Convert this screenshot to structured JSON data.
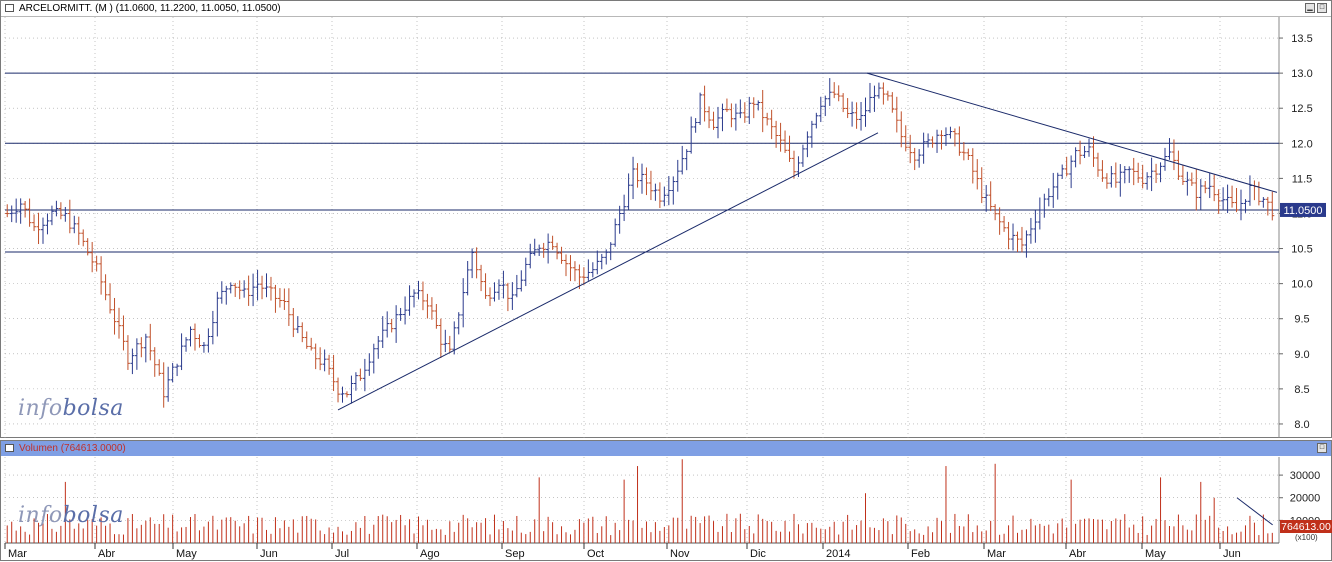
{
  "price_panel": {
    "title": "ARCELORMITT. (M ) (11.0600, 11.2200, 11.0050, 11.0500)",
    "last_value_label": "11.0500"
  },
  "volume_panel": {
    "title": "Volumen (764613.0000)",
    "last_value_label": "764613.00",
    "scale_note": "(x100)"
  },
  "logo": {
    "part1": "info",
    "part2": "bolsa"
  },
  "colors": {
    "up_bar": "#2a3a8c",
    "down_bar": "#c0502a",
    "hline": "#1a2a6a",
    "trend": "#1a2a6a",
    "vol_bar": "#c0301a",
    "grid": "#a0a0a0"
  },
  "chart_data": [
    {
      "type": "ohlc",
      "title": "ARCELORMITT. (M )",
      "ylim": [
        7.8,
        13.8
      ],
      "yticks": [
        "8.0",
        "8.5",
        "9.0",
        "9.5",
        "10.0",
        "10.5",
        "11.0",
        "11.5",
        "12.0",
        "12.5",
        "13.0",
        "13.5"
      ],
      "x_month_labels": [
        "Mar",
        "Abr",
        "May",
        "Jun",
        "Jul",
        "Ago",
        "Sep",
        "Oct",
        "Nov",
        "Dic",
        "2014",
        "Feb",
        "Mar",
        "Abr",
        "May",
        "Jun"
      ],
      "last_ohlc": {
        "open": 11.06,
        "high": 11.22,
        "low": 11.005,
        "close": 11.05
      },
      "horizontal_lines": [
        13.0,
        12.0,
        11.05,
        10.45
      ],
      "trend_lines": [
        {
          "from": {
            "date": "Jul",
            "value": 8.2
          },
          "to": {
            "date": "2014",
            "value": 12.15
          }
        },
        {
          "from": {
            "date": "2014",
            "value": 13.0
          },
          "to": {
            "date": "Jun",
            "value": 11.3
          }
        }
      ],
      "series_anchors": [
        {
          "x": 0,
          "y": 11.0
        },
        {
          "x": 3,
          "y": 11.15
        },
        {
          "x": 6,
          "y": 10.8
        },
        {
          "x": 10,
          "y": 11.0
        },
        {
          "x": 13,
          "y": 10.95
        },
        {
          "x": 16,
          "y": 10.7
        },
        {
          "x": 20,
          "y": 10.2
        },
        {
          "x": 24,
          "y": 9.5
        },
        {
          "x": 27,
          "y": 8.95
        },
        {
          "x": 31,
          "y": 9.25
        },
        {
          "x": 35,
          "y": 8.45
        },
        {
          "x": 38,
          "y": 8.9
        },
        {
          "x": 41,
          "y": 9.35
        },
        {
          "x": 44,
          "y": 9.1
        },
        {
          "x": 47,
          "y": 9.75
        },
        {
          "x": 50,
          "y": 10.05
        },
        {
          "x": 53,
          "y": 9.85
        },
        {
          "x": 56,
          "y": 10.0
        },
        {
          "x": 59,
          "y": 9.85
        },
        {
          "x": 62,
          "y": 9.7
        },
        {
          "x": 65,
          "y": 9.3
        },
        {
          "x": 68,
          "y": 9.0
        },
        {
          "x": 71,
          "y": 8.85
        },
        {
          "x": 74,
          "y": 8.5
        },
        {
          "x": 76,
          "y": 8.45
        },
        {
          "x": 79,
          "y": 8.7
        },
        {
          "x": 82,
          "y": 9.1
        },
        {
          "x": 85,
          "y": 9.35
        },
        {
          "x": 88,
          "y": 9.6
        },
        {
          "x": 91,
          "y": 9.85
        },
        {
          "x": 94,
          "y": 9.75
        },
        {
          "x": 97,
          "y": 9.2
        },
        {
          "x": 99,
          "y": 9.0
        },
        {
          "x": 102,
          "y": 9.9
        },
        {
          "x": 104,
          "y": 10.45
        },
        {
          "x": 107,
          "y": 9.8
        },
        {
          "x": 110,
          "y": 10.05
        },
        {
          "x": 113,
          "y": 9.75
        },
        {
          "x": 116,
          "y": 10.25
        },
        {
          "x": 119,
          "y": 10.55
        },
        {
          "x": 122,
          "y": 10.6
        },
        {
          "x": 125,
          "y": 10.3
        },
        {
          "x": 128,
          "y": 10.1
        },
        {
          "x": 131,
          "y": 10.2
        },
        {
          "x": 134,
          "y": 10.4
        },
        {
          "x": 137,
          "y": 11.0
        },
        {
          "x": 140,
          "y": 11.55
        },
        {
          "x": 143,
          "y": 11.45
        },
        {
          "x": 146,
          "y": 11.25
        },
        {
          "x": 149,
          "y": 11.5
        },
        {
          "x": 152,
          "y": 11.95
        },
        {
          "x": 155,
          "y": 12.6
        },
        {
          "x": 158,
          "y": 12.3
        },
        {
          "x": 161,
          "y": 12.45
        },
        {
          "x": 164,
          "y": 12.35
        },
        {
          "x": 167,
          "y": 12.6
        },
        {
          "x": 170,
          "y": 12.3
        },
        {
          "x": 173,
          "y": 12.0
        },
        {
          "x": 176,
          "y": 11.6
        },
        {
          "x": 179,
          "y": 12.15
        },
        {
          "x": 182,
          "y": 12.6
        },
        {
          "x": 185,
          "y": 12.7
        },
        {
          "x": 188,
          "y": 12.4
        },
        {
          "x": 191,
          "y": 12.35
        },
        {
          "x": 194,
          "y": 12.75
        },
        {
          "x": 197,
          "y": 12.6
        },
        {
          "x": 200,
          "y": 12.1
        },
        {
          "x": 203,
          "y": 11.85
        },
        {
          "x": 206,
          "y": 12.0
        },
        {
          "x": 209,
          "y": 12.2
        },
        {
          "x": 212,
          "y": 12.05
        },
        {
          "x": 215,
          "y": 11.75
        },
        {
          "x": 218,
          "y": 11.3
        },
        {
          "x": 221,
          "y": 10.95
        },
        {
          "x": 224,
          "y": 10.7
        },
        {
          "x": 227,
          "y": 10.55
        },
        {
          "x": 230,
          "y": 10.95
        },
        {
          "x": 233,
          "y": 11.3
        },
        {
          "x": 236,
          "y": 11.55
        },
        {
          "x": 239,
          "y": 11.85
        },
        {
          "x": 242,
          "y": 11.9
        },
        {
          "x": 245,
          "y": 11.55
        },
        {
          "x": 248,
          "y": 11.45
        },
        {
          "x": 251,
          "y": 11.6
        },
        {
          "x": 254,
          "y": 11.5
        },
        {
          "x": 257,
          "y": 11.65
        },
        {
          "x": 260,
          "y": 11.85
        },
        {
          "x": 263,
          "y": 11.5
        },
        {
          "x": 266,
          "y": 11.3
        },
        {
          "x": 269,
          "y": 11.4
        },
        {
          "x": 272,
          "y": 11.2
        },
        {
          "x": 275,
          "y": 11.05
        },
        {
          "x": 278,
          "y": 11.35
        },
        {
          "x": 281,
          "y": 11.2
        },
        {
          "x": 283,
          "y": 11.05
        }
      ]
    },
    {
      "type": "bar",
      "title": "Volumen",
      "ylim": [
        0,
        38000
      ],
      "yticks": [
        "10000",
        "20000",
        "30000"
      ],
      "last_value": 764613.0,
      "spike_bars": [
        {
          "x": 13,
          "v": 27000
        },
        {
          "x": 119,
          "v": 29000
        },
        {
          "x": 138,
          "v": 28000
        },
        {
          "x": 141,
          "v": 34000
        },
        {
          "x": 151,
          "v": 37000
        },
        {
          "x": 192,
          "v": 22000
        },
        {
          "x": 210,
          "v": 34000
        },
        {
          "x": 221,
          "v": 35000
        },
        {
          "x": 238,
          "v": 28000
        },
        {
          "x": 258,
          "v": 29000
        },
        {
          "x": 267,
          "v": 27000
        },
        {
          "x": 270,
          "v": 20000
        }
      ],
      "trend_line": {
        "from": {
          "x_frac": 0.967,
          "v": 20000
        },
        "to": {
          "x_frac": 0.995,
          "v": 8000
        }
      }
    }
  ]
}
